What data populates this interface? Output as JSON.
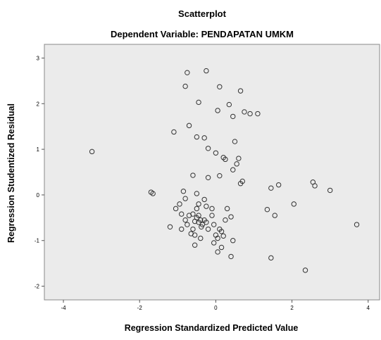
{
  "chart_data": {
    "type": "scatter",
    "title": "Scatterplot",
    "subtitle": "Dependent Variable: PENDAPATAN UMKM",
    "xlabel": "Regression Standardized Predicted Value",
    "ylabel": "Regression Studentized Residual",
    "xlim": [
      -4.5,
      4.3
    ],
    "ylim": [
      -2.3,
      3.3
    ],
    "xticks": [
      -4,
      -2,
      0,
      2,
      4
    ],
    "yticks": [
      -2,
      -1,
      0,
      1,
      2,
      3
    ],
    "grid": false,
    "plot_background": "#ebebeb",
    "marker_color": "#333333",
    "points": [
      [
        -3.25,
        0.95
      ],
      [
        -1.7,
        0.06
      ],
      [
        -1.65,
        0.03
      ],
      [
        -1.1,
        1.38
      ],
      [
        -0.75,
        2.68
      ],
      [
        -0.8,
        2.38
      ],
      [
        -0.7,
        1.52
      ],
      [
        -0.25,
        2.72
      ],
      [
        -0.45,
        2.03
      ],
      [
        0.1,
        2.37
      ],
      [
        0.35,
        1.98
      ],
      [
        0.65,
        2.28
      ],
      [
        0.05,
        1.85
      ],
      [
        0.45,
        1.72
      ],
      [
        0.75,
        1.82
      ],
      [
        0.9,
        1.78
      ],
      [
        1.1,
        1.78
      ],
      [
        -0.5,
        1.27
      ],
      [
        -0.3,
        1.25
      ],
      [
        -0.2,
        1.02
      ],
      [
        0.0,
        0.92
      ],
      [
        0.2,
        0.82
      ],
      [
        0.25,
        0.78
      ],
      [
        0.5,
        1.17
      ],
      [
        0.6,
        0.8
      ],
      [
        0.55,
        0.68
      ],
      [
        0.45,
        0.55
      ],
      [
        0.7,
        0.3
      ],
      [
        0.65,
        0.25
      ],
      [
        -0.6,
        0.43
      ],
      [
        -0.2,
        0.38
      ],
      [
        0.1,
        0.42
      ],
      [
        -0.85,
        0.08
      ],
      [
        -0.8,
        -0.08
      ],
      [
        -0.95,
        -0.2
      ],
      [
        -1.05,
        -0.3
      ],
      [
        -0.9,
        -0.42
      ],
      [
        -0.5,
        0.03
      ],
      [
        -0.45,
        -0.2
      ],
      [
        -0.3,
        -0.1
      ],
      [
        -0.25,
        -0.25
      ],
      [
        -0.8,
        -0.55
      ],
      [
        -0.75,
        -0.65
      ],
      [
        -0.9,
        -0.75
      ],
      [
        -1.2,
        -0.7
      ],
      [
        -0.7,
        -0.45
      ],
      [
        -0.6,
        -0.42
      ],
      [
        -0.55,
        -0.58
      ],
      [
        -0.5,
        -0.5
      ],
      [
        -0.45,
        -0.6
      ],
      [
        -0.4,
        -0.55
      ],
      [
        -0.38,
        -0.7
      ],
      [
        -0.35,
        -0.65
      ],
      [
        -0.3,
        -0.55
      ],
      [
        -0.6,
        -0.75
      ],
      [
        -0.55,
        -0.88
      ],
      [
        -0.5,
        -0.3
      ],
      [
        -0.45,
        -0.45
      ],
      [
        -0.65,
        -0.85
      ],
      [
        -0.55,
        -1.1
      ],
      [
        -0.4,
        -0.95
      ],
      [
        -0.25,
        -0.6
      ],
      [
        -0.2,
        -0.75
      ],
      [
        -0.1,
        -0.45
      ],
      [
        -0.05,
        -0.65
      ],
      [
        0.0,
        -0.88
      ],
      [
        0.1,
        -0.75
      ],
      [
        0.15,
        -0.8
      ],
      [
        0.05,
        -0.95
      ],
      [
        -0.05,
        -1.05
      ],
      [
        0.2,
        -0.9
      ],
      [
        0.3,
        -0.3
      ],
      [
        0.4,
        -0.48
      ],
      [
        0.25,
        -0.55
      ],
      [
        0.05,
        -1.25
      ],
      [
        0.15,
        -1.15
      ],
      [
        0.45,
        -1.0
      ],
      [
        0.4,
        -1.35
      ],
      [
        -0.1,
        -0.3
      ],
      [
        1.45,
        0.15
      ],
      [
        1.65,
        0.22
      ],
      [
        1.35,
        -0.32
      ],
      [
        1.55,
        -0.45
      ],
      [
        2.05,
        -0.2
      ],
      [
        2.55,
        0.28
      ],
      [
        2.6,
        0.2
      ],
      [
        3.0,
        0.1
      ],
      [
        1.45,
        -1.38
      ],
      [
        2.35,
        -1.65
      ],
      [
        3.7,
        -0.65
      ]
    ]
  }
}
